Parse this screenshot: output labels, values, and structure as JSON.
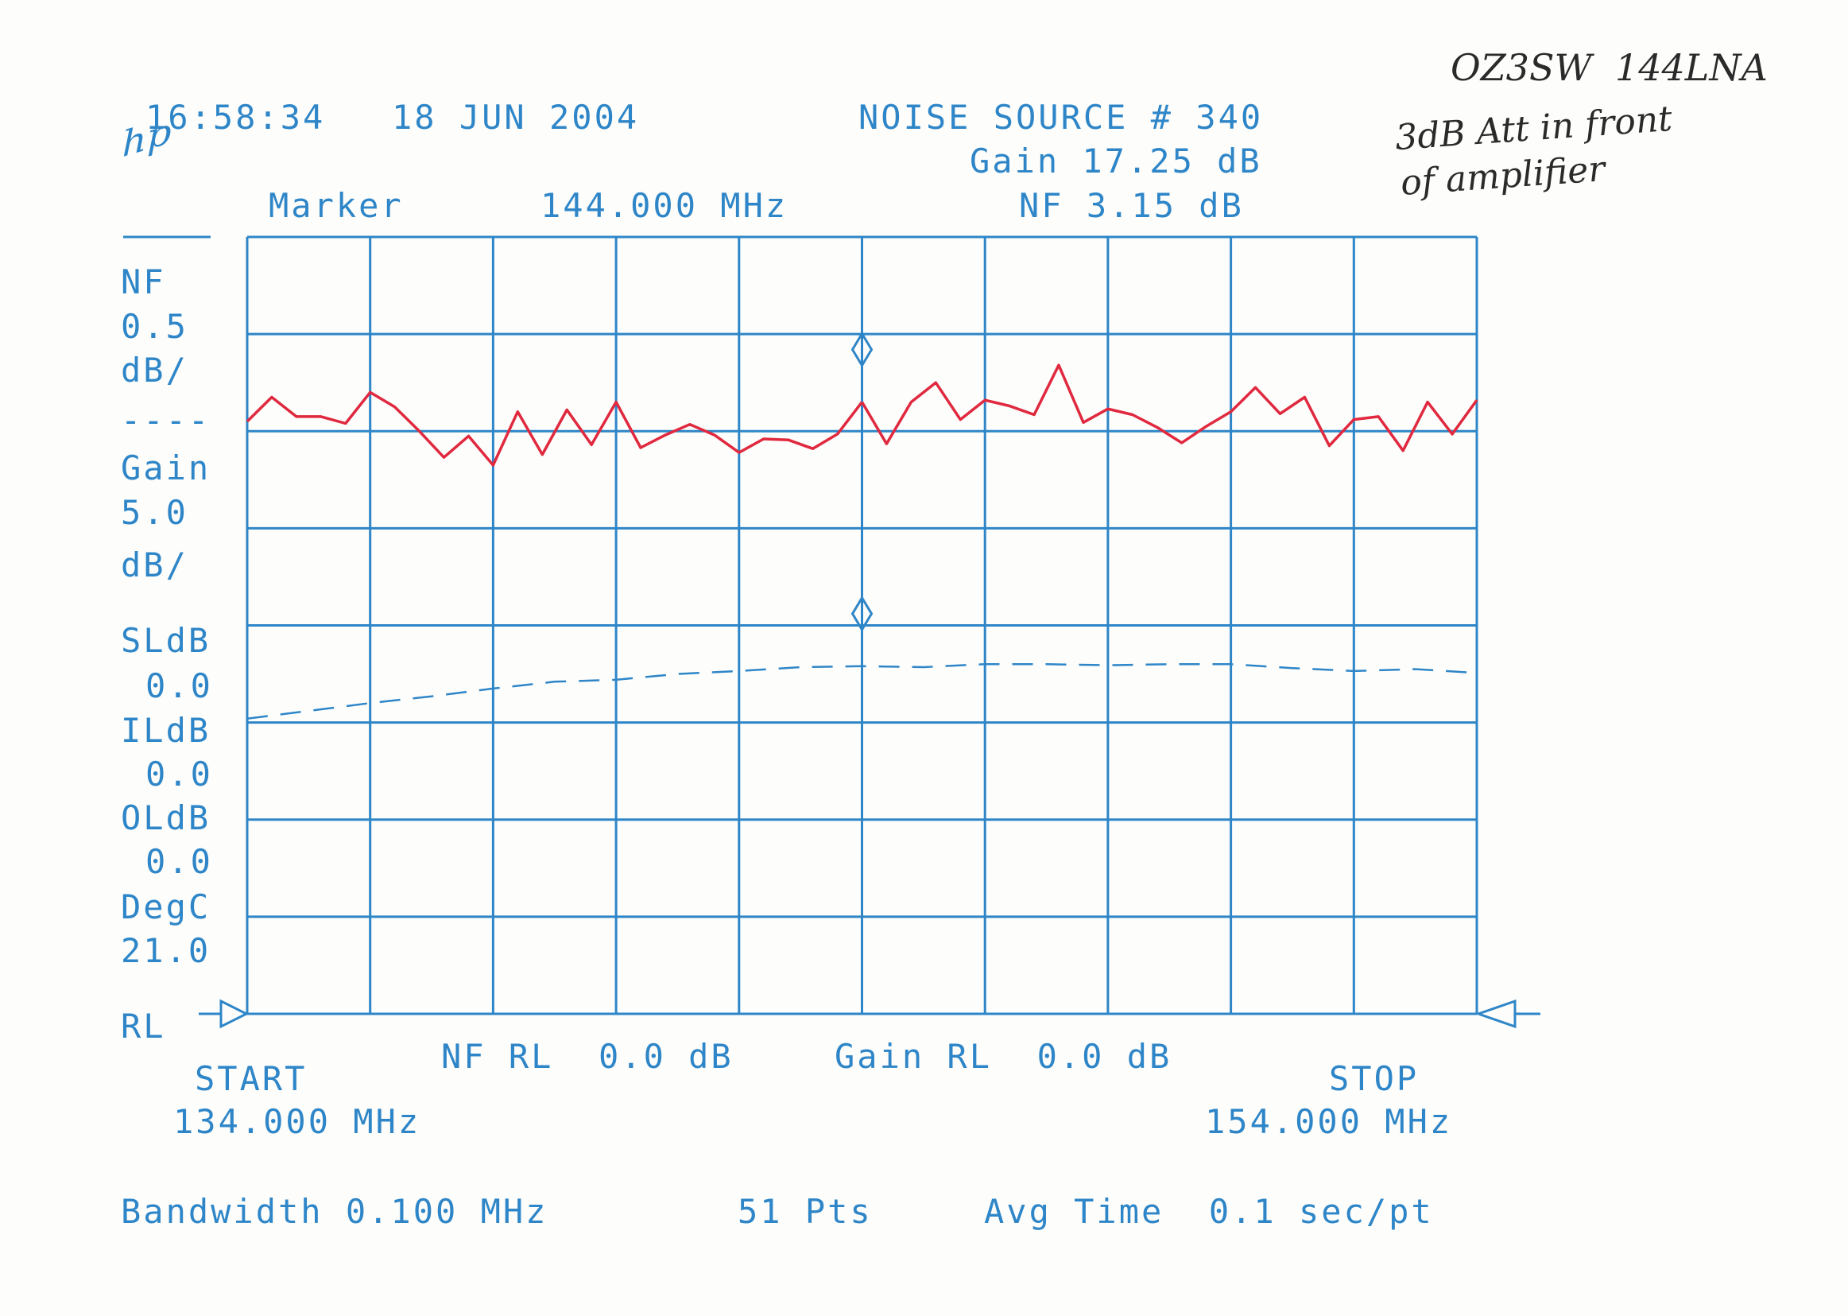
{
  "header": {
    "time": "16:58:34",
    "date": "18 JUN 2004",
    "noise_source": "NOISE SOURCE # 340",
    "gain_readout": "Gain 17.25 dB",
    "marker_label": "Marker",
    "marker_freq": "144.000 MHz",
    "nf_readout": "NF 3.15 dB",
    "logo": "hp"
  },
  "annotations": {
    "line1": "OZ3SW  144LNA",
    "line2": "3dB Att in front",
    "line3": "of amplifier"
  },
  "left_panel": {
    "nf_label": "NF",
    "nf_scale": "0.5",
    "nf_unit": "dB/",
    "separator": "----",
    "gain_label": "Gain",
    "gain_scale": "5.0",
    "gain_unit": "dB/",
    "sl_label": "SLdB",
    "sl_value": "0.0",
    "il_label": "ILdB",
    "il_value": "0.0",
    "ol_label": "OLdB",
    "ol_value": "0.0",
    "temp_label": "DegC",
    "temp_value": "21.0",
    "rl_label": "RL"
  },
  "footer": {
    "start_label": "START",
    "start_freq": "134.000 MHz",
    "stop_label": "STOP",
    "stop_freq": "154.000 MHz",
    "nf_rl": "NF RL  0.0 dB",
    "gain_rl": "Gain RL  0.0 dB",
    "bandwidth": "Bandwidth 0.100 MHz",
    "points": "51 Pts",
    "avg_time": "Avg Time  0.1 sec/pt"
  },
  "colors": {
    "ink": "#2e86c8",
    "nf_trace": "#e0293f",
    "grid": "#2e86c8",
    "paper": "#fdfdfb"
  },
  "chart_data": {
    "type": "line",
    "xlim": [
      134,
      154
    ],
    "x_divisions": 10,
    "y_divisions": 8,
    "marker_x": 144,
    "series": [
      {
        "name": "NF",
        "style": "solid",
        "y_units": "divisions from bottom",
        "x": [
          134,
          134.4,
          134.8,
          135.2,
          135.6,
          136,
          136.4,
          136.8,
          137.2,
          137.6,
          138,
          138.4,
          138.8,
          139.2,
          139.6,
          140,
          140.4,
          140.8,
          141.2,
          141.6,
          142,
          142.4,
          142.8,
          143.2,
          143.6,
          144,
          144.4,
          144.8,
          145.2,
          145.6,
          146,
          146.4,
          146.8,
          147.2,
          147.6,
          148,
          148.4,
          148.8,
          149.2,
          149.6,
          150,
          150.4,
          150.8,
          151.2,
          151.6,
          152,
          152.4,
          152.8,
          153.2,
          153.6,
          154
        ],
        "values": [
          6.1,
          6.35,
          6.15,
          6.15,
          6.08,
          6.4,
          6.25,
          6.0,
          5.73,
          5.95,
          5.65,
          6.2,
          5.76,
          6.22,
          5.86,
          6.3,
          5.83,
          5.96,
          6.07,
          5.96,
          5.78,
          5.92,
          5.91,
          5.82,
          5.97,
          6.3,
          5.87,
          6.3,
          6.5,
          6.12,
          6.32,
          6.26,
          6.17,
          6.68,
          6.09,
          6.23,
          6.17,
          6.04,
          5.88,
          6.05,
          6.2,
          6.45,
          6.18,
          6.35,
          5.85,
          6.12,
          6.15,
          5.8,
          6.3,
          5.97,
          6.32
        ]
      },
      {
        "name": "Gain",
        "style": "dashed",
        "y_units": "divisions from bottom",
        "x": [
          134,
          135,
          136,
          137,
          138,
          139,
          140,
          141,
          142,
          143,
          144,
          145,
          146,
          147,
          148,
          149,
          150,
          151,
          152,
          153,
          154
        ],
        "values": [
          3.04,
          3.12,
          3.2,
          3.27,
          3.35,
          3.42,
          3.44,
          3.5,
          3.53,
          3.57,
          3.58,
          3.57,
          3.6,
          3.6,
          3.59,
          3.6,
          3.6,
          3.56,
          3.53,
          3.55,
          3.51
        ]
      }
    ]
  }
}
